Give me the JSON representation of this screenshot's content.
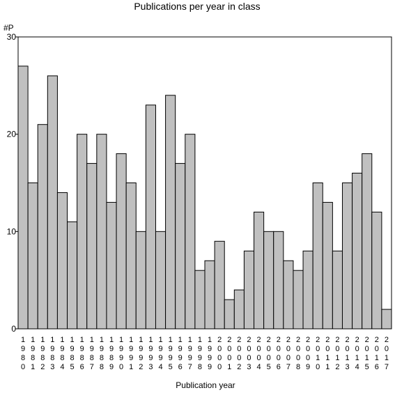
{
  "chart_data": {
    "type": "bar",
    "title": "Publications per year in class",
    "ylabel": "#P",
    "xlabel": "Publication year",
    "ylim": [
      0,
      30
    ],
    "yticks": [
      0,
      10,
      20,
      30
    ],
    "grid": false,
    "bar_color": "#c0c0c0",
    "categories": [
      "1980",
      "1981",
      "1982",
      "1983",
      "1984",
      "1985",
      "1986",
      "1987",
      "1988",
      "1989",
      "1990",
      "1991",
      "1992",
      "1993",
      "1994",
      "1995",
      "1996",
      "1997",
      "1998",
      "1999",
      "2000",
      "2001",
      "2002",
      "2003",
      "2004",
      "2005",
      "2006",
      "2007",
      "2008",
      "2009",
      "2010",
      "2011",
      "2012",
      "2013",
      "2014",
      "2015",
      "2016",
      "2017"
    ],
    "values": [
      27,
      15,
      21,
      26,
      14,
      11,
      20,
      17,
      20,
      13,
      18,
      15,
      10,
      23,
      10,
      24,
      17,
      20,
      6,
      7,
      9,
      3,
      4,
      8,
      12,
      10,
      10,
      7,
      6,
      8,
      15,
      13,
      8,
      15,
      16,
      18,
      12,
      2
    ]
  }
}
